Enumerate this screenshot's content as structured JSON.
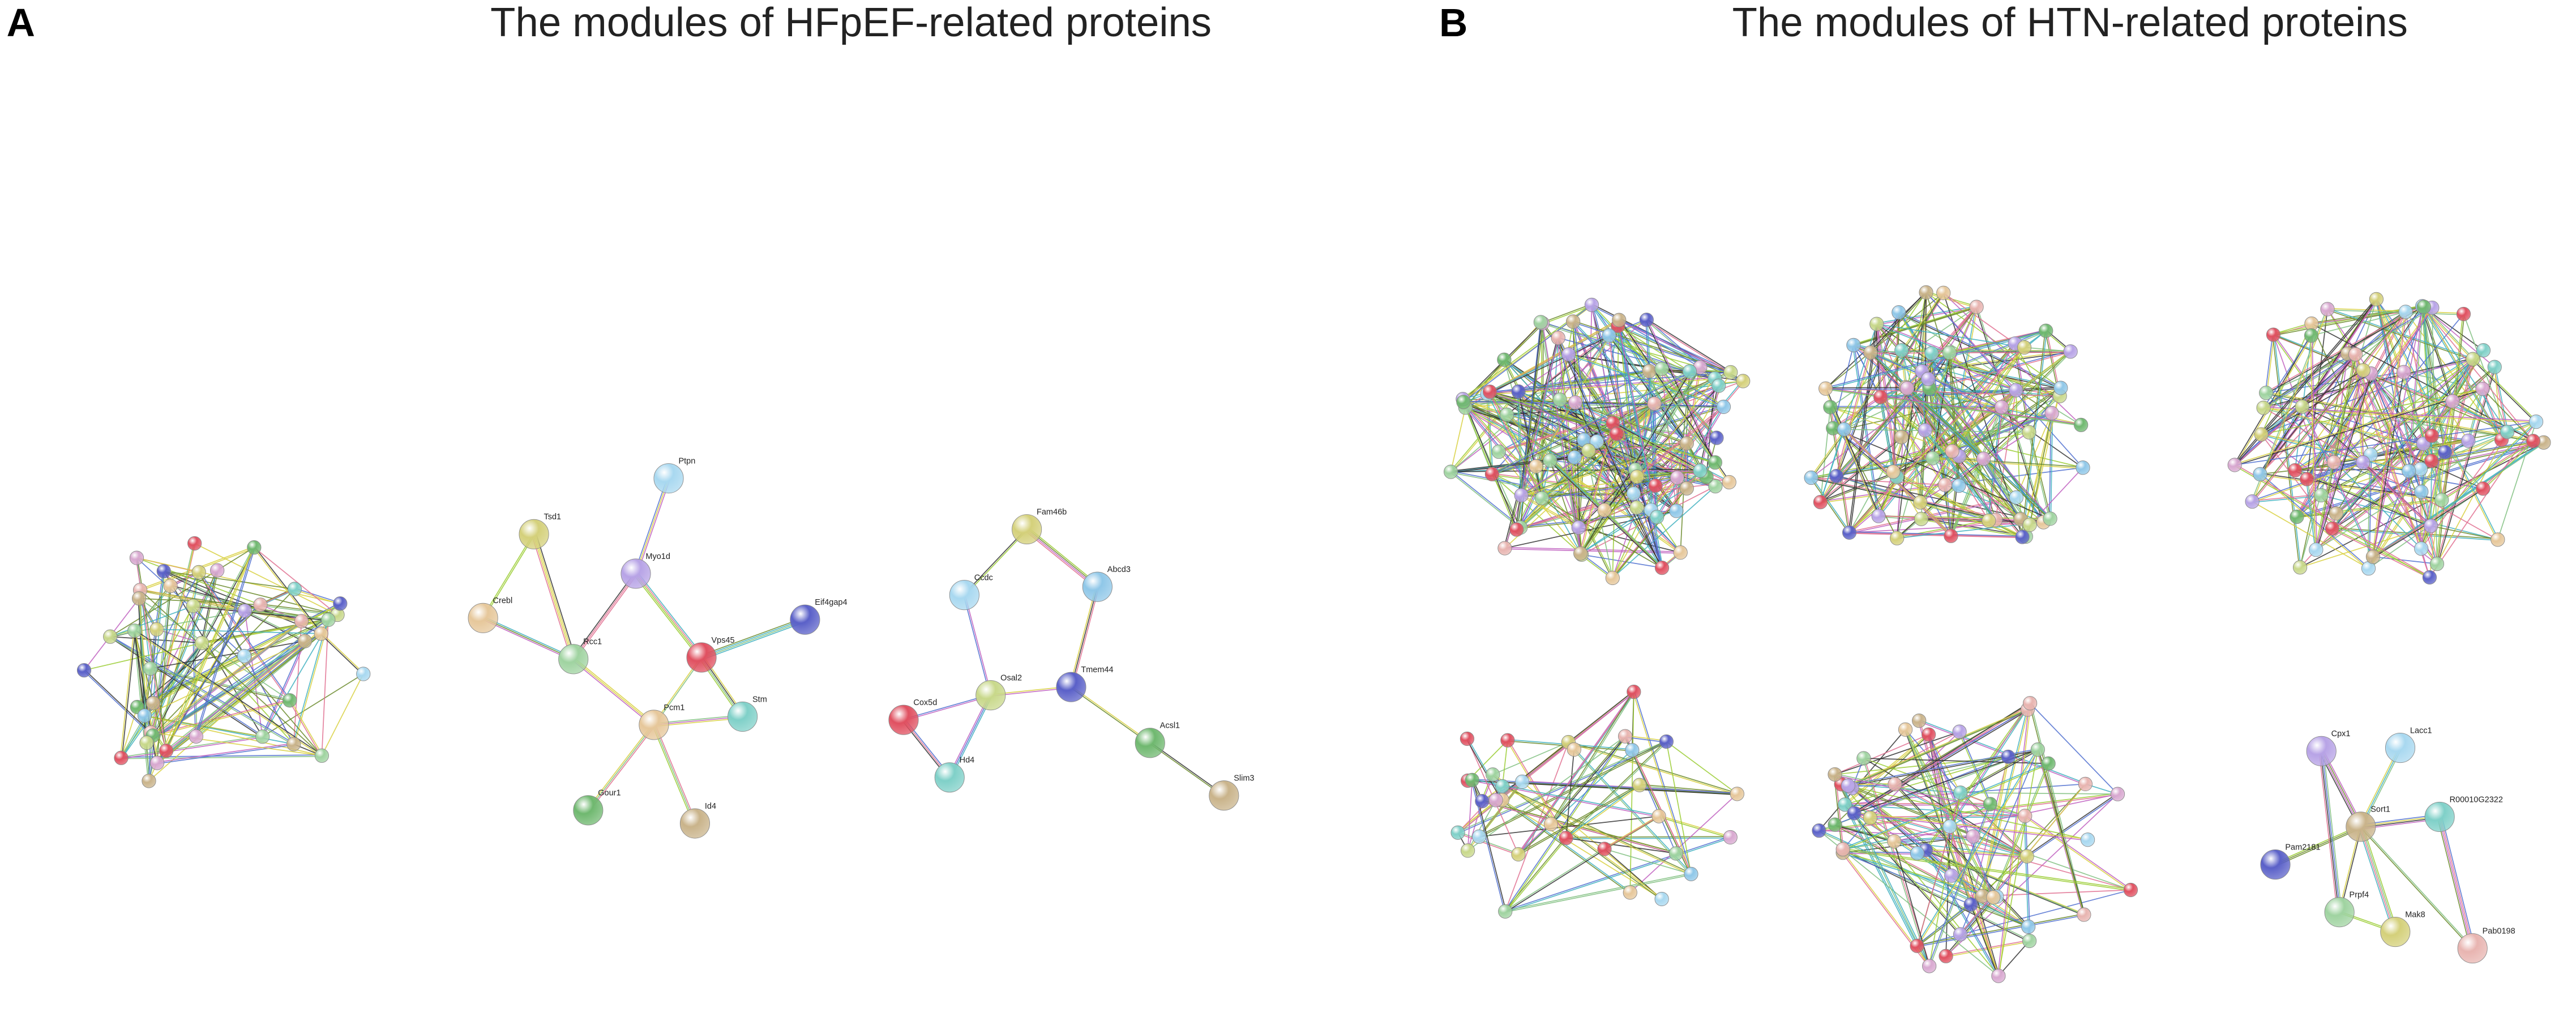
{
  "panels": [
    {
      "label": "A",
      "title": "The modules of HFpEF-related proteins",
      "modules": [
        [
          "Tsd1",
          "Ptpn",
          "Myo1d",
          "Crebl",
          "Rcc1",
          "Vps45",
          "Eif4gap4",
          "Pcm1",
          "Stm",
          "Gour1",
          "Id4"
        ],
        [
          "Fam46b",
          "Ccdc",
          "Abcd3",
          "Cox5d",
          "Osal2",
          "Tmem44",
          "Acsl1",
          "Hd4",
          "Slim3"
        ]
      ]
    },
    {
      "label": "B",
      "title": "The modules of HTN-related proteins",
      "modules": [
        [
          "Cpx1",
          "Lacc1",
          "Sort1",
          "R00010G2322",
          "Pam2181",
          "Prpf4",
          "Mak8",
          "Pab0198"
        ]
      ]
    }
  ]
}
